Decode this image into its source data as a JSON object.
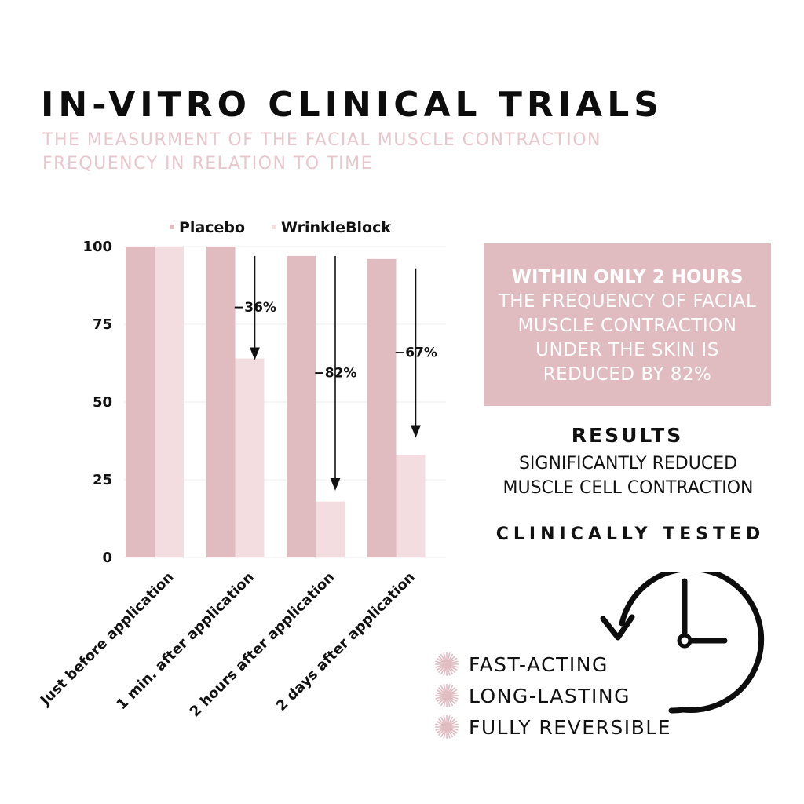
{
  "header": {
    "title": "IN-VITRO CLINICAL TRIALS",
    "subtitle_line1": "THE MEASURMENT OF THE FACIAL MUSCLE CONTRACTION",
    "subtitle_line2": "FREQUENCY IN RELATION TO TIME"
  },
  "chart_data": {
    "type": "bar",
    "categories": [
      "Just before application",
      "1 min. after application",
      "2 hours after application",
      "2 days after application"
    ],
    "series": [
      {
        "name": "Placebo",
        "values": [
          100,
          100,
          97,
          96
        ],
        "color": "#e0bcc1"
      },
      {
        "name": "WrinkleBlock",
        "values": [
          100,
          64,
          18,
          33
        ],
        "color": "#f3dde0"
      }
    ],
    "ylim": [
      0,
      100
    ],
    "yticks": [
      "100",
      "75",
      "50",
      "25",
      "0"
    ],
    "grid": true,
    "legend": "top",
    "annotations": [
      {
        "category": 1,
        "label": "−36%",
        "from": 97,
        "to": 64
      },
      {
        "category": 2,
        "label": "−82%",
        "from": 97,
        "to": 22
      },
      {
        "category": 3,
        "label": "−67%",
        "from": 93,
        "to": 39
      }
    ]
  },
  "callout": {
    "heading": "WITHIN ONLY 2 HOURS",
    "lines": [
      "THE FREQUENCY OF FACIAL",
      "MUSCLE CONTRACTION",
      "UNDER THE SKIN IS",
      "REDUCED BY 82%"
    ]
  },
  "results": {
    "heading": "RESULTS",
    "line1": "SIGNIFICANTLY REDUCED",
    "line2": "MUSCLE CELL CONTRACTION",
    "tested": "CLINICALLY TESTED"
  },
  "features": [
    {
      "icon": "sunburst-icon",
      "label": "FAST-ACTING"
    },
    {
      "icon": "sunburst-icon",
      "label": "LONG-LASTING"
    },
    {
      "icon": "sunburst-icon",
      "label": "FULLY REVERSIBLE"
    }
  ],
  "icons": {
    "clock": "clock-icon"
  },
  "colors": {
    "accent": "#e0bcc1",
    "accent_light": "#f3dde0",
    "subtitle": "#e8c7cc"
  }
}
